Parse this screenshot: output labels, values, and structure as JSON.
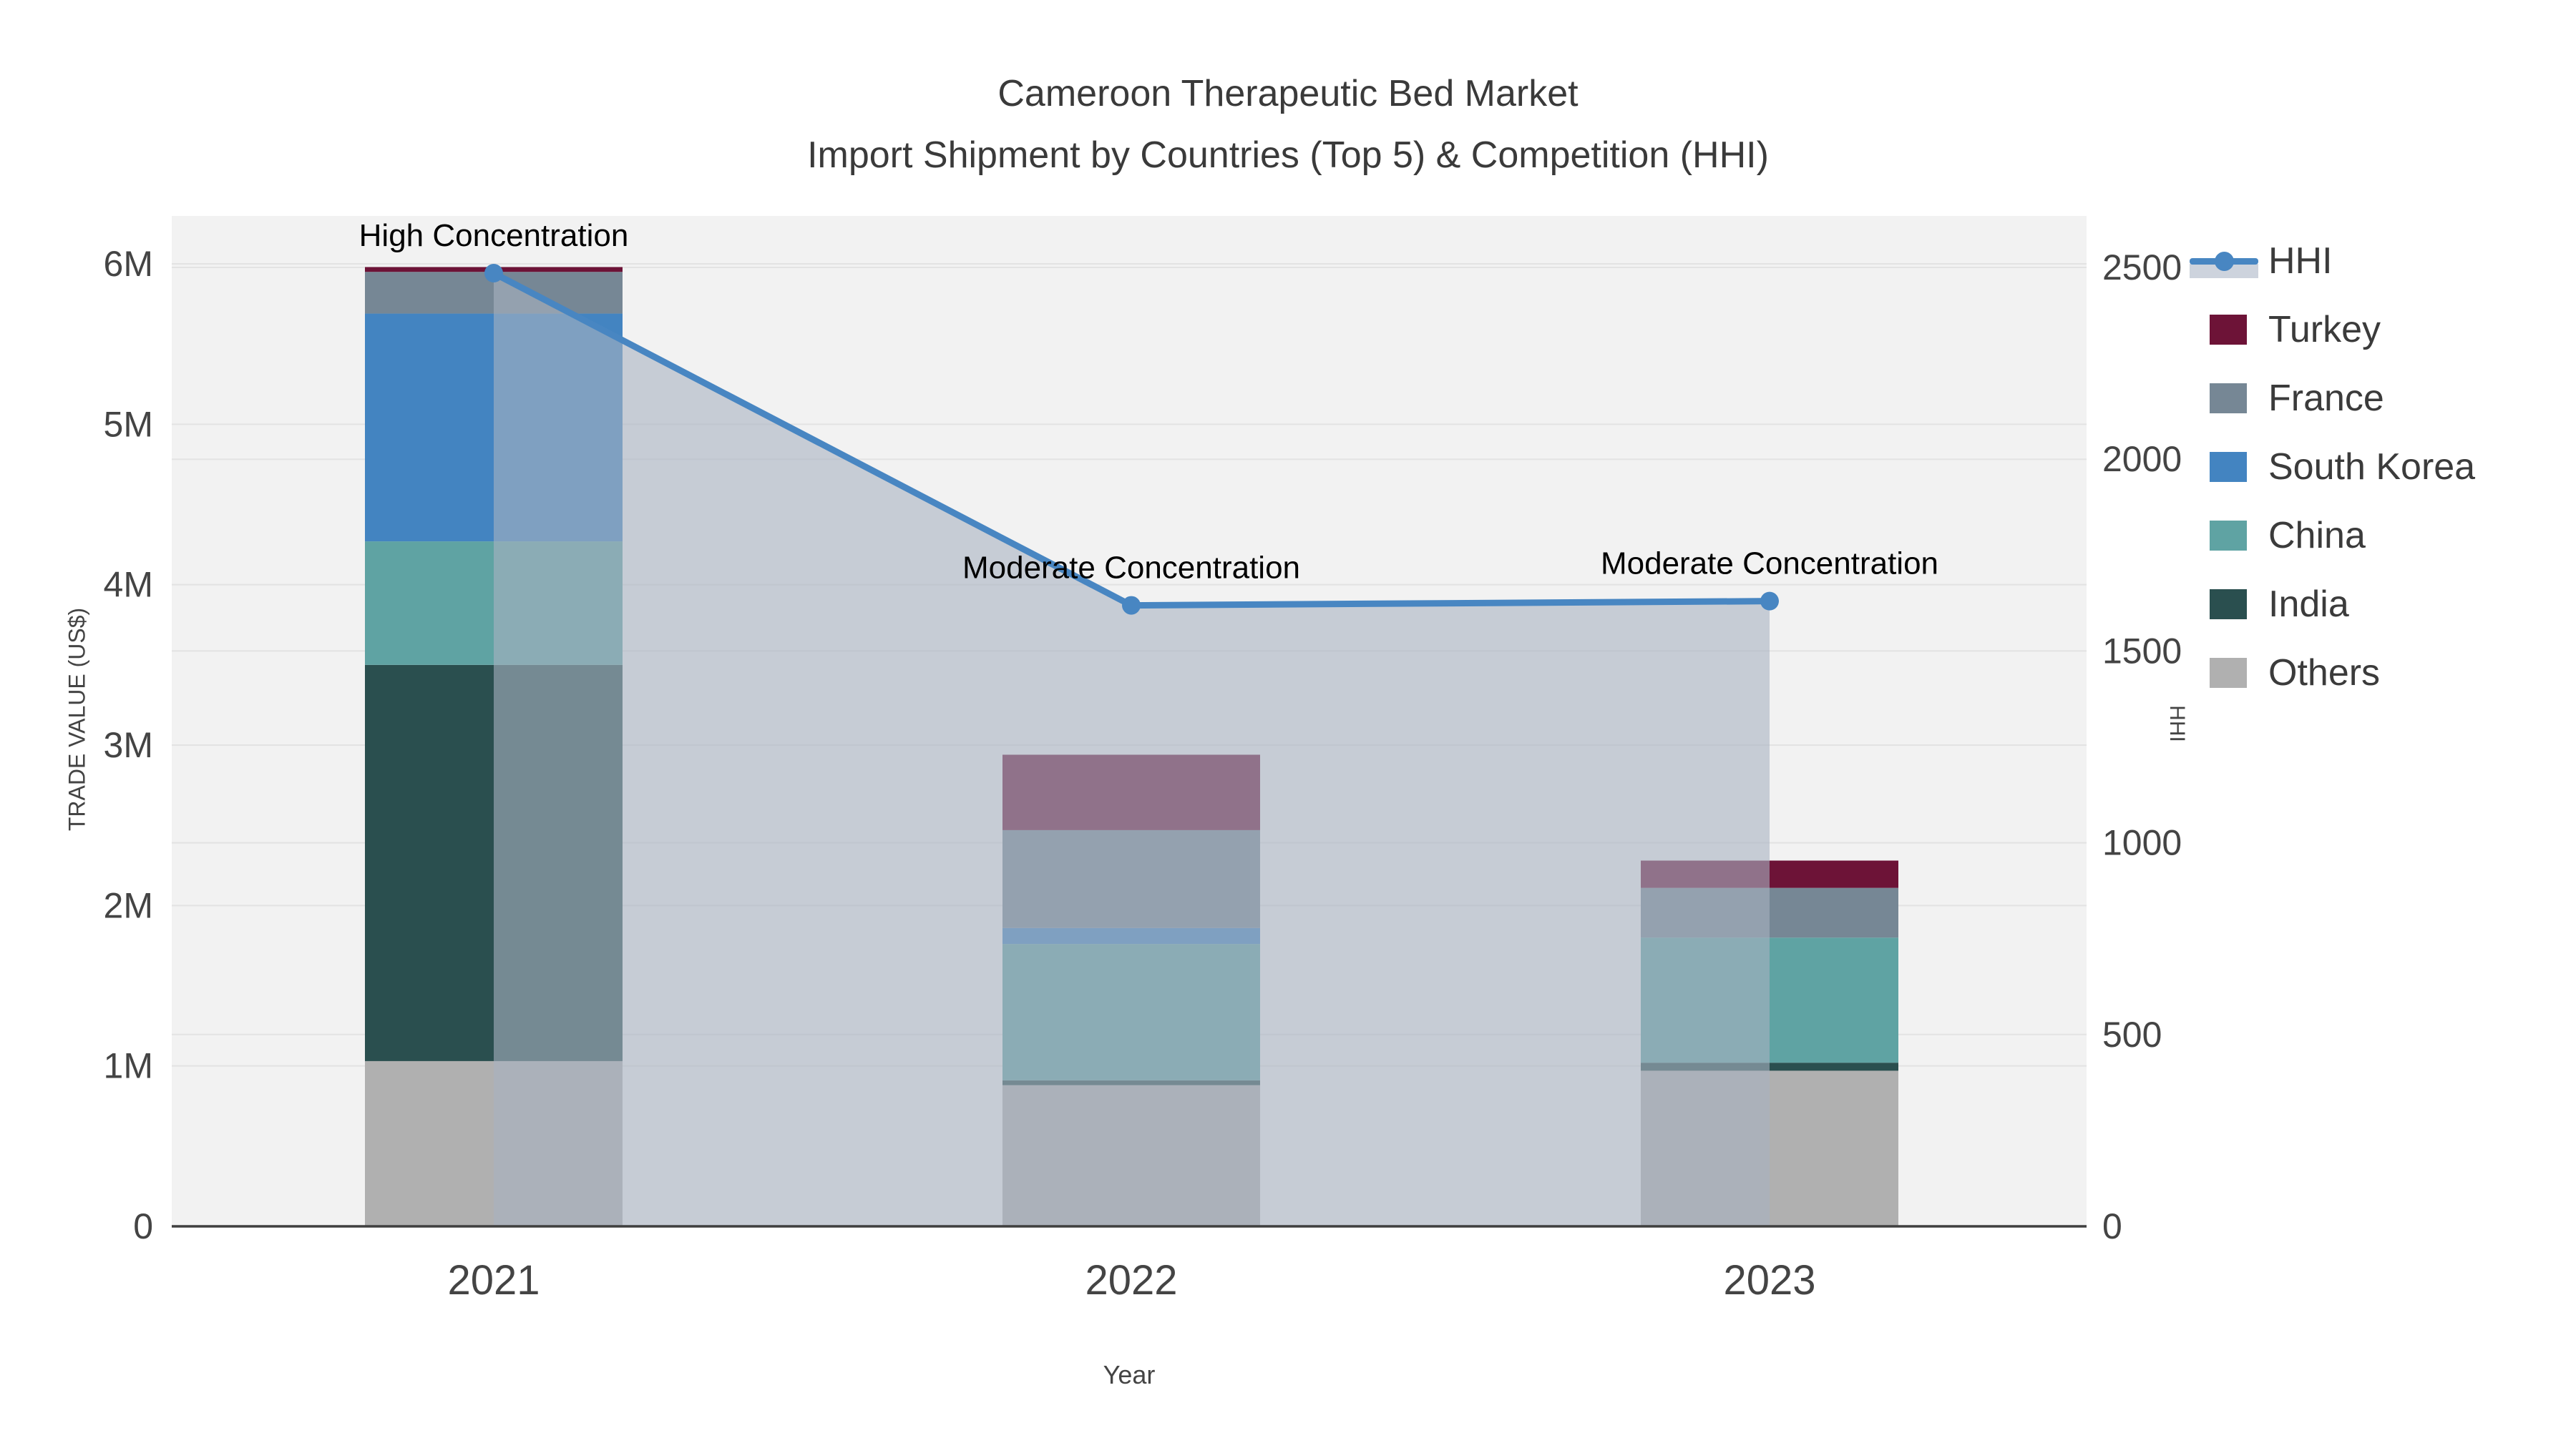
{
  "title": "Cameroon Therapeutic Bed Market",
  "subtitle": "Import Shipment by Countries (Top 5) & Competition (HHI)",
  "chart_data": {
    "type": "bar",
    "stacked": true,
    "overlay_line_type": "line",
    "categories": [
      "2021",
      "2022",
      "2023"
    ],
    "series": [
      {
        "name": "Others",
        "color": "#B0B0B0",
        "values": [
          1030000,
          880000,
          970000
        ]
      },
      {
        "name": "India",
        "color": "#2A4F4F",
        "values": [
          2470000,
          30000,
          50000
        ]
      },
      {
        "name": "China",
        "color": "#5FA3A3",
        "values": [
          770000,
          850000,
          780000
        ]
      },
      {
        "name": "South Korea",
        "color": "#4384C1",
        "values": [
          1420000,
          100000,
          0
        ]
      },
      {
        "name": "France",
        "color": "#768795",
        "values": [
          260000,
          610000,
          310000
        ]
      },
      {
        "name": "Turkey",
        "color": "#6D1337",
        "values": [
          30000,
          470000,
          170000
        ]
      }
    ],
    "hhi": {
      "name": "HHI",
      "color": "#4886C2",
      "area_fill": "rgba(168,178,194,0.6)",
      "values": [
        2485,
        1619,
        1630
      ]
    },
    "annotations": [
      "High Concentration",
      "Moderate Concentration",
      "Moderate Concentration"
    ],
    "x_axis": {
      "title": "Year"
    },
    "y_left": {
      "title": "TRADE VALUE (US$)",
      "tick_values": [
        0,
        1000000,
        2000000,
        3000000,
        4000000,
        5000000,
        6000000
      ],
      "tick_labels": [
        "0",
        "1M",
        "2M",
        "3M",
        "4M",
        "5M",
        "6M"
      ],
      "range": [
        0,
        6000000
      ]
    },
    "y_right": {
      "title": "HHI",
      "tick_values": [
        0,
        500,
        1000,
        1500,
        2000,
        2500
      ],
      "tick_labels": [
        "0",
        "500",
        "1000",
        "1500",
        "2000",
        "2500"
      ],
      "range": [
        0,
        2500
      ]
    },
    "grid": true,
    "legend_position": "right",
    "colors": {
      "plot_bg": "#f2f2f2",
      "gridline": "#e3e3e3",
      "axis_line": "#3f3f3f",
      "tick_text": "#444444",
      "annotation_text": "#000000"
    }
  },
  "legend": {
    "items": [
      {
        "label": "HHI",
        "type": "line",
        "color": "#4886C2",
        "band": "#cdd3dd"
      },
      {
        "label": "Turkey",
        "type": "swatch",
        "color": "#6D1337"
      },
      {
        "label": "France",
        "type": "swatch",
        "color": "#768795"
      },
      {
        "label": "South Korea",
        "type": "swatch",
        "color": "#4384C1"
      },
      {
        "label": "China",
        "type": "swatch",
        "color": "#5FA3A3"
      },
      {
        "label": "India",
        "type": "swatch",
        "color": "#2A4F4F"
      },
      {
        "label": "Others",
        "type": "swatch",
        "color": "#B0B0B0"
      }
    ]
  }
}
